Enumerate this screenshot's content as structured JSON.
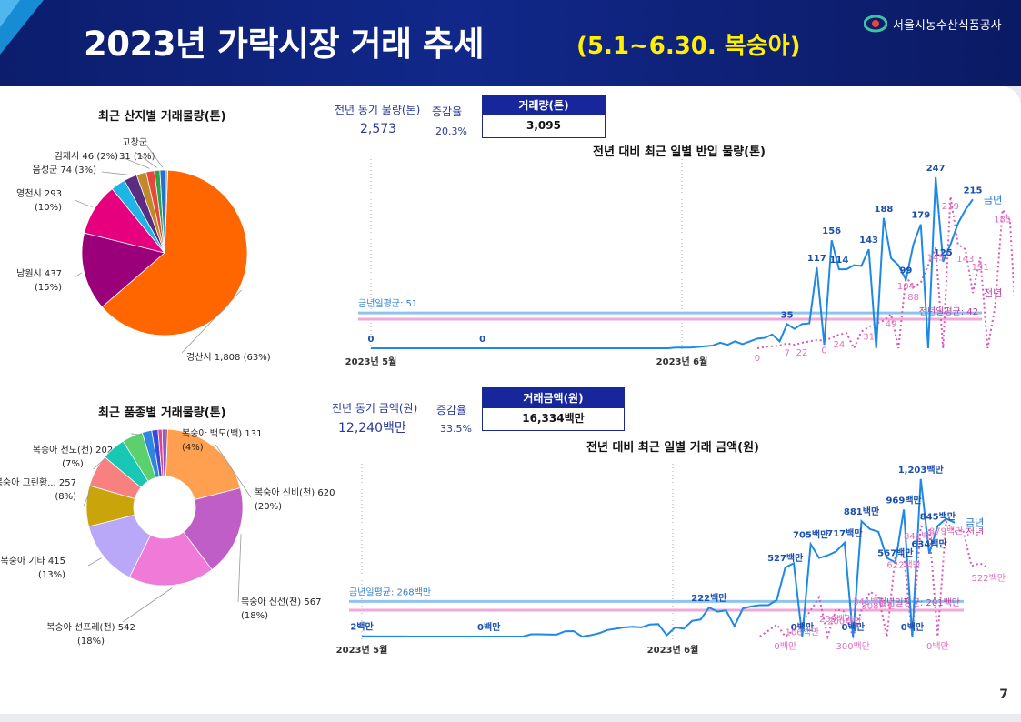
{
  "header": {
    "title": "2023년 가락시장 거래 추세",
    "subtitle": "(5.1~6.30. 복숭아)",
    "org": "서울시농수산식품공사"
  },
  "page_number": "7",
  "kpi_volume": {
    "prev_label": "전년 동기 물량(톤)",
    "prev_value": "2,573",
    "rate_label": "증감율",
    "rate_value": "20.3%",
    "box_label": "거래량(톤)",
    "box_value": "3,095"
  },
  "kpi_amount": {
    "prev_label": "전년 동기 금액(원)",
    "prev_value": "12,240",
    "prev_unit": "백만",
    "rate_label": "증감율",
    "rate_value": "33.5%",
    "box_label": "거래금액(원)",
    "box_value": "16,334",
    "box_unit": "백만"
  },
  "colors": {
    "this_year": "#1e88e5",
    "last_year": "#d958b8",
    "avg_this": "#90c4f0",
    "avg_last": "#f2a8d8",
    "accent": "#ffef00",
    "header": "#11288a"
  },
  "chart_data": [
    {
      "type": "pie",
      "title": "최근 산지별 거래물량(톤)",
      "slices": [
        {
          "label": "경산시 1,808 (63%)",
          "value": 1808,
          "color": "#ff6600"
        },
        {
          "label": "남원시 437 (15%)",
          "value": 437,
          "color": "#99007a"
        },
        {
          "label": "영천시 293 (10%)",
          "value": 293,
          "color": "#e6007e"
        },
        {
          "label": "",
          "value": 82,
          "color": "#1eb4e6"
        },
        {
          "label": "음성군 74 (3%)",
          "value": 74,
          "color": "#5a2d82"
        },
        {
          "label": "",
          "value": 55,
          "color": "#c08a2a"
        },
        {
          "label": "김제시 46 (2%)",
          "value": 46,
          "color": "#e8483c"
        },
        {
          "label": "31 (1%)",
          "value": 31,
          "color": "#2ea34a"
        },
        {
          "label": "고창군",
          "value": 30,
          "color": "#2672c8"
        },
        {
          "label": "",
          "value": 14,
          "color": "#9fb6c8"
        }
      ]
    },
    {
      "type": "pie",
      "title": "최근 품종별 거래물량(톤)",
      "slices": [
        {
          "label": "복숭아 신비(천) 620 (20%)",
          "value": 620,
          "color": "#ffa050"
        },
        {
          "label": "복숭아 신선(천) 567 (18%)",
          "value": 567,
          "color": "#c05ec8"
        },
        {
          "label": "복숭아 선프레(천) 542 (18%)",
          "value": 542,
          "color": "#f07ad8"
        },
        {
          "label": "복숭아 기타 415 (13%)",
          "value": 415,
          "color": "#b9a8f8"
        },
        {
          "label": "복숭아 그린황... 257 (8%)",
          "value": 257,
          "color": "#c9a40a"
        },
        {
          "label": "복숭아 천도(천) 202 (7%)",
          "value": 202,
          "color": "#f88080"
        },
        {
          "label": "",
          "value": 150,
          "color": "#19c8b4"
        },
        {
          "label": "복숭아 백도(백) 131 (4%)",
          "value": 131,
          "color": "#5cd06c"
        },
        {
          "label": "",
          "value": 60,
          "color": "#2f86e0"
        },
        {
          "label": "",
          "value": 40,
          "color": "#3a4ad8"
        },
        {
          "label": "",
          "value": 25,
          "color": "#e84090"
        },
        {
          "label": "",
          "value": 20,
          "color": "#8a5ad0"
        },
        {
          "label": "",
          "value": 15,
          "color": "#e05030"
        }
      ]
    },
    {
      "type": "line",
      "title": "전년 대비 최근 일별 반입 물량(톤)",
      "x_ticks": [
        "2023년 5월",
        "2023년 6월"
      ],
      "series": [
        {
          "name": "금년",
          "values": [
            0,
            0,
            0,
            0,
            0,
            0,
            0,
            0,
            0,
            0,
            0,
            0,
            0,
            0,
            0,
            0,
            0,
            0,
            0,
            0,
            0,
            0,
            0,
            0,
            0,
            0,
            0,
            0,
            0,
            0,
            0,
            0,
            0,
            0,
            0,
            0,
            0,
            0,
            0,
            0,
            0,
            1,
            1,
            1,
            2,
            3,
            4,
            8,
            5,
            10,
            6,
            10,
            14,
            15,
            20,
            10,
            35,
            28,
            35,
            36,
            117,
            5,
            156,
            114,
            114,
            120,
            119,
            143,
            0,
            188,
            130,
            120,
            99,
            150,
            179,
            0,
            247,
            125,
            150,
            180,
            200,
            215
          ]
        },
        {
          "name": "전년",
          "values": [
            null,
            null,
            null,
            null,
            null,
            null,
            null,
            null,
            null,
            null,
            null,
            null,
            null,
            null,
            null,
            null,
            null,
            null,
            null,
            null,
            null,
            null,
            null,
            null,
            null,
            null,
            null,
            null,
            null,
            null,
            null,
            null,
            null,
            null,
            null,
            null,
            null,
            null,
            null,
            null,
            null,
            null,
            null,
            null,
            null,
            null,
            null,
            null,
            null,
            null,
            null,
            null,
            0,
            2,
            3,
            4,
            7,
            5,
            8,
            10,
            12,
            11,
            15,
            20,
            22,
            0,
            24,
            31,
            36,
            40,
            49,
            0,
            104,
            88,
            95,
            120,
            145,
            0,
            219,
            150,
            143,
            80,
            131,
            0,
            60,
            200,
            185,
            0,
            172,
            150,
            137,
            160
          ]
        }
      ],
      "point_labels": {
        "this_year": [
          "0",
          "0",
          "35",
          "117",
          "156",
          "114",
          "143",
          "188",
          "99",
          "179",
          "247",
          "125",
          "215"
        ],
        "last_year": [
          "0",
          "7",
          "22",
          "0",
          "24",
          "31",
          "49",
          "104",
          "88",
          "145",
          "219",
          "143",
          "131",
          "185",
          "172",
          "137"
        ]
      },
      "avg_lines": [
        {
          "label": "금년일평균: 51",
          "value": 51
        },
        {
          "label": "전년일평균: 42",
          "value": 42
        }
      ],
      "ylim": [
        0,
        260
      ]
    },
    {
      "type": "line",
      "title": "전년 대비 최근 일별 거래 금액(원)",
      "x_ticks": [
        "2023년 5월",
        "2023년 6월"
      ],
      "series": [
        {
          "name": "금년",
          "values": [
            2,
            2,
            1,
            1,
            1,
            1,
            0,
            0,
            0,
            0,
            0,
            0,
            0,
            0,
            0,
            0,
            0,
            0,
            0,
            0,
            17,
            17,
            16,
            15,
            40,
            42,
            0,
            10,
            25,
            50,
            60,
            70,
            75,
            70,
            92,
            95,
            10,
            70,
            60,
            120,
            130,
            222,
            190,
            200,
            80,
            215,
            230,
            240,
            240,
            280,
            527,
            560,
            0,
            705,
            600,
            620,
            650,
            717,
            0,
            881,
            820,
            800,
            600,
            567,
            969,
            0,
            1203,
            634,
            845,
            900,
            870
          ]
        },
        {
          "name": "전년",
          "values": [
            null,
            null,
            null,
            null,
            null,
            null,
            null,
            null,
            null,
            null,
            null,
            null,
            null,
            null,
            null,
            null,
            null,
            null,
            null,
            null,
            null,
            null,
            null,
            null,
            null,
            null,
            null,
            null,
            null,
            null,
            null,
            null,
            null,
            null,
            null,
            null,
            null,
            null,
            null,
            null,
            null,
            null,
            null,
            null,
            null,
            null,
            null,
            0,
            45,
            92,
            0,
            50,
            106,
            200,
            300,
            0,
            209,
            190,
            0,
            200,
            341,
            308,
            0,
            620,
            622,
            0,
            841,
            820,
            0,
            879,
            800,
            812,
            540,
            560,
            522
          ]
        }
      ],
      "point_labels": {
        "this_year": [
          "2백만",
          "0백만",
          "222백만",
          "0백만",
          "527백만",
          "705백만",
          "717백만",
          "0백만",
          "881백만",
          "567백만",
          "969백만",
          "0백만",
          "1,203백만",
          "634백만",
          "845백만"
        ],
        "last_year": [
          "17백만",
          "40백만",
          "0백만",
          "92백만",
          "0백만",
          "106백만",
          "209백만",
          "200백만",
          "300백만",
          "341백만",
          "308백만",
          "622백만",
          "841백만",
          "879백만",
          "522백만",
          "0백만"
        ]
      },
      "avg_lines": [
        {
          "label": "금년일평균: 268백만",
          "value": 268
        },
        {
          "label": "전년일평균: 201백만",
          "value": 201
        }
      ],
      "ylim": [
        0,
        1250
      ]
    }
  ],
  "legend": {
    "this_year": "금년",
    "last_year": "전년"
  }
}
